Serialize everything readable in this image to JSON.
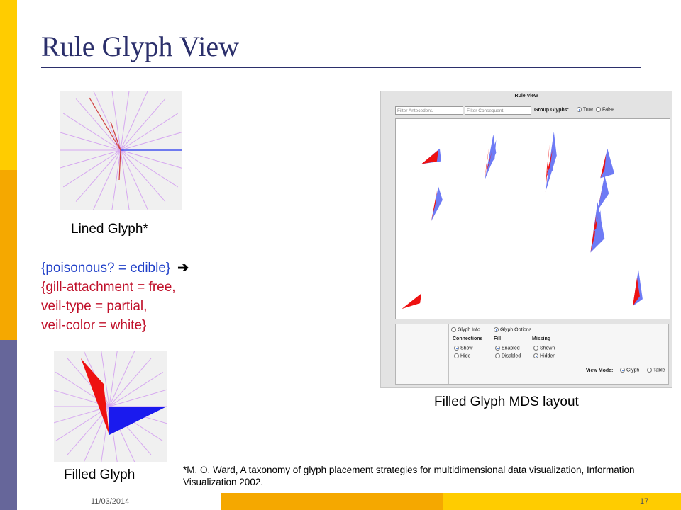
{
  "slide": {
    "title": "Rule Glyph View",
    "date": "11/03/2014",
    "page_number": "17"
  },
  "lined_glyph": {
    "label": "Lined Glyph*"
  },
  "filled_glyph": {
    "label": "Filled Glyph"
  },
  "rule": {
    "antecedent": "{poisonous? = edible}",
    "arrow_icon": "right-arrow-icon",
    "consequent_lines": [
      "{gill-attachment = free,",
      "veil-type = partial,",
      "veil-color = white}"
    ]
  },
  "mds": {
    "label": "Filled Glyph MDS layout"
  },
  "rule_view": {
    "title": "Rule View",
    "filter_antecedent_placeholder": "Filter Antecedent.",
    "filter_consequent_placeholder": "Filter Consequent.",
    "group_glyphs_label": "Group Glyphs:",
    "group_options": [
      {
        "label": "True",
        "selected": true
      },
      {
        "label": "False",
        "selected": false
      }
    ],
    "panel_tabs": [
      {
        "label": "Glyph Info",
        "selected": false
      },
      {
        "label": "Glyph Options",
        "selected": true
      }
    ],
    "connections": {
      "label": "Connections",
      "options": [
        {
          "label": "Show",
          "selected": true
        },
        {
          "label": "Hide",
          "selected": false
        }
      ]
    },
    "fill": {
      "label": "Fill",
      "options": [
        {
          "label": "Enabled",
          "selected": true
        },
        {
          "label": "Disabled",
          "selected": false
        }
      ]
    },
    "missing": {
      "label": "Missing",
      "options": [
        {
          "label": "Shown",
          "selected": false
        },
        {
          "label": "Hidden",
          "selected": true
        }
      ]
    },
    "view_mode": {
      "label": "View Mode:",
      "options": [
        {
          "label": "Glyph",
          "selected": true
        },
        {
          "label": "Table",
          "selected": false
        }
      ]
    }
  },
  "footnote": "*M. O. Ward, A taxonomy of glyph placement strategies for multidimensional data visualization, Information Visualization 2002.",
  "colors": {
    "title": "#2B2F6B",
    "antecedent": "#1F3FC8",
    "consequent": "#C0102A",
    "glyph_red": "#EE1111",
    "glyph_blue": "#1A1AEE",
    "glyph_lavender": "#D6A8F0"
  }
}
